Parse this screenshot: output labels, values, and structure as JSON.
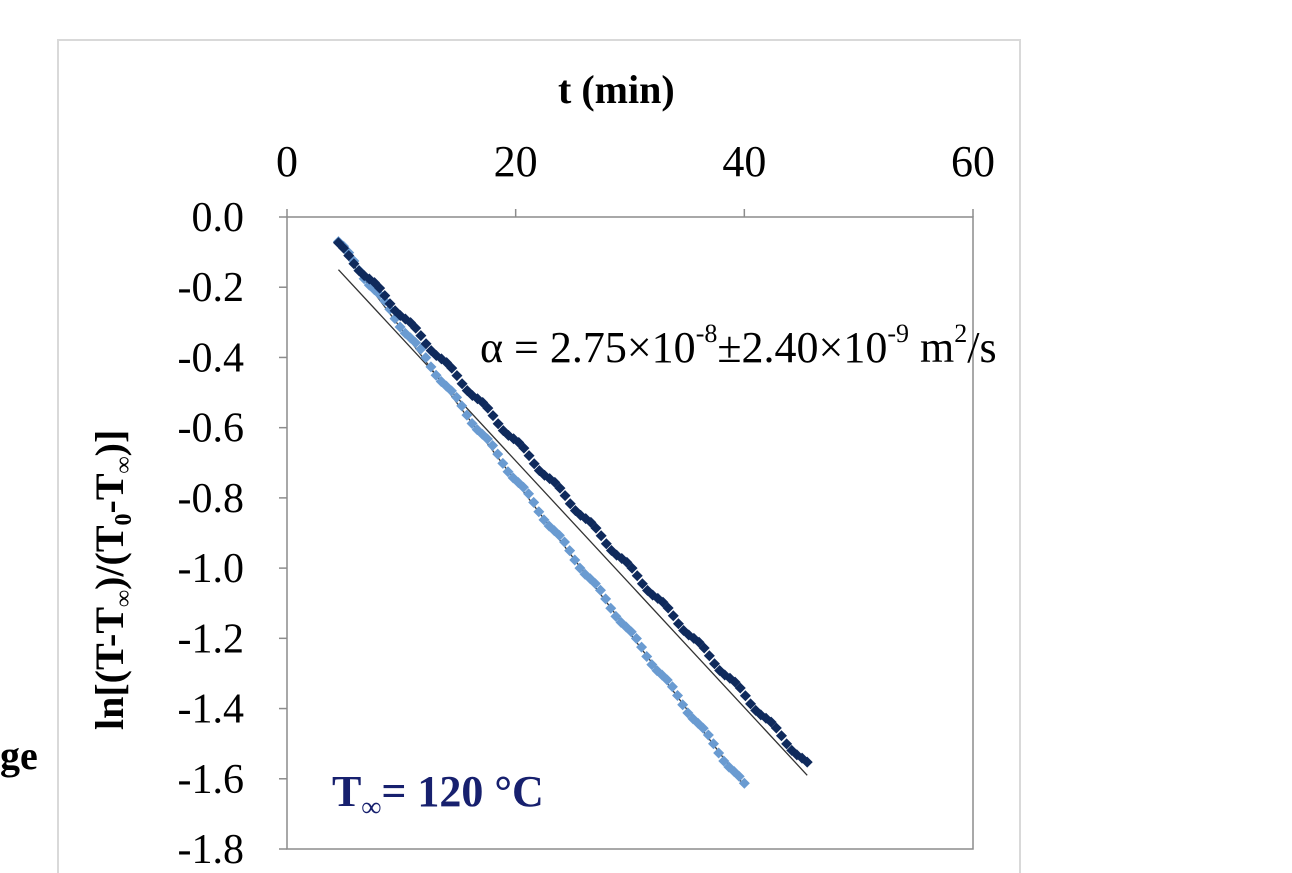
{
  "fragment_text": "ge",
  "chart_data": {
    "type": "scatter",
    "title": "",
    "xlabel": "t (min)",
    "ylabel": {
      "text_a": "ln[(T-T",
      "sub_a": "∞",
      "text_b": ")/(T",
      "sub_b": "0",
      "text_c": "-T",
      "sub_c": "∞",
      "text_d": ")]"
    },
    "x_axis_position": "top",
    "xlim": [
      0,
      60
    ],
    "ylim": [
      -1.8,
      0.0
    ],
    "x_ticks": [
      "0",
      "20",
      "40",
      "60"
    ],
    "y_ticks": [
      "0.0",
      "-0.2",
      "-0.4",
      "-0.6",
      "-0.8",
      "-1.0",
      "-1.2",
      "-1.4",
      "-1.6",
      "-1.8"
    ],
    "grid": false,
    "annotation": {
      "alpha_prefix": "α = 2.75×10",
      "alpha_exp1": "-8",
      "alpha_mid": "±2.40×10",
      "alpha_exp2": "-9",
      "alpha_unit_m": " m",
      "alpha_unit_exp": "2",
      "alpha_unit_tail": "/s"
    },
    "condition": {
      "t_text": "T",
      "t_sub": "∞",
      "t_value": "= 120 °C"
    },
    "series": [
      {
        "color": "#6a9bd1",
        "x_start": 4.5,
        "x_end": 40,
        "count": 80,
        "y_start": -0.07,
        "y_end": -1.62
      },
      {
        "color": "#0f2a5c",
        "x_start": 4.5,
        "x_end": 45.5,
        "count": 92,
        "y_start": -0.08,
        "y_end": -1.56
      }
    ],
    "fit_lines": [
      {
        "x": [
          4.5,
          40
        ],
        "y": [
          -0.08,
          -1.62
        ]
      },
      {
        "x": [
          4.5,
          45.5
        ],
        "y": [
          -0.15,
          -1.59
        ]
      }
    ]
  }
}
